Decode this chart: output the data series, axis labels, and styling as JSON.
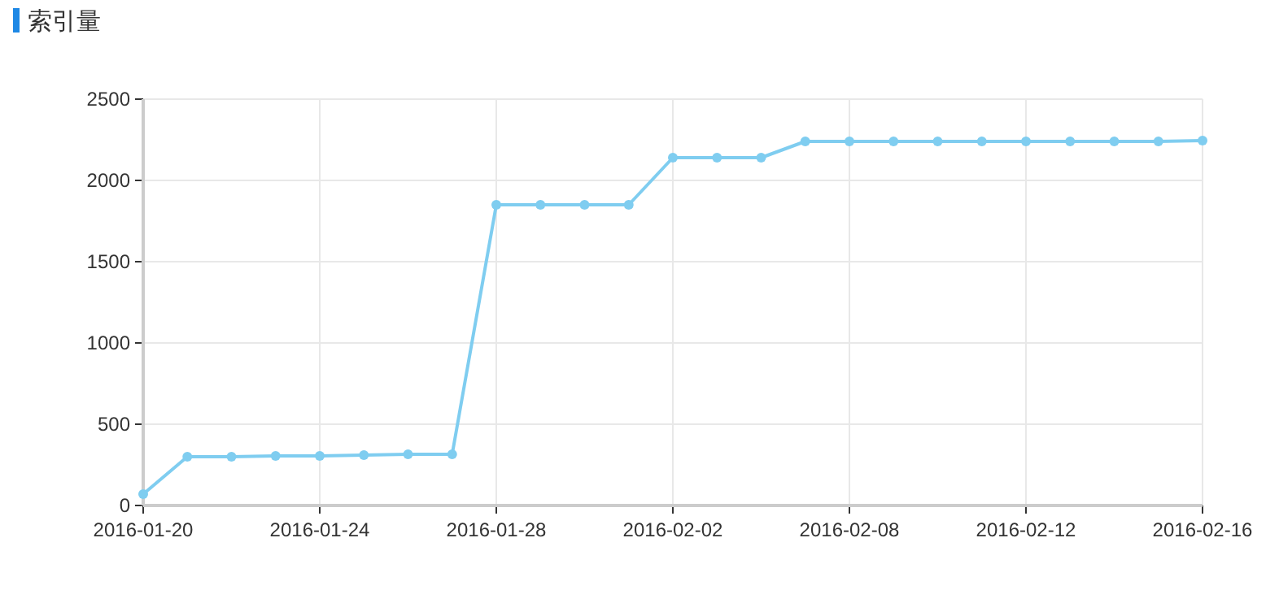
{
  "chart_data": {
    "type": "line",
    "title": "索引量",
    "categories": [
      "2016-01-20",
      null,
      null,
      null,
      "2016-01-24",
      null,
      null,
      null,
      "2016-01-28",
      null,
      null,
      null,
      "2016-02-02",
      null,
      null,
      null,
      "2016-02-08",
      null,
      null,
      null,
      "2016-02-12",
      null,
      null,
      null,
      "2016-02-16"
    ],
    "values": [
      70,
      300,
      300,
      305,
      305,
      310,
      315,
      315,
      1850,
      1850,
      1850,
      1850,
      2140,
      2140,
      2140,
      2240,
      2240,
      2240,
      2240,
      2240,
      2240,
      2240,
      2240,
      2240,
      2245
    ],
    "color": "#7fcdf0",
    "ylim": [
      0,
      2500
    ],
    "yticks": [
      0,
      500,
      1000,
      1500,
      2000,
      2500
    ],
    "grid": true,
    "marker": "circle",
    "line_style": "solid"
  }
}
